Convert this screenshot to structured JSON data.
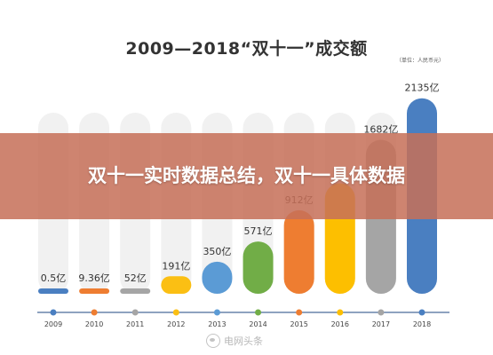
{
  "chart_data": {
    "type": "bar",
    "title": "2009—2018“双十一”成交额",
    "unit_note": "（单位：人民币元）",
    "categories": [
      "2009",
      "2010",
      "2011",
      "2012",
      "2013",
      "2014",
      "2015",
      "2016",
      "2017",
      "2018"
    ],
    "values": [
      0.5,
      9.36,
      52,
      191,
      350,
      571,
      912,
      1207,
      1682,
      2135
    ],
    "value_labels": [
      "0.5亿",
      "9.36亿",
      "52亿",
      "191亿",
      "350亿",
      "571亿",
      "912亿",
      "",
      "1682亿",
      "2135亿"
    ],
    "colors": [
      "#4a7fc1",
      "#ee7d31",
      "#a5a5a5",
      "#fbbf13",
      "#5b9bd5",
      "#71ad47",
      "#ee7d31",
      "#fdbf00",
      "#a5a5a5",
      "#4a7fc1"
    ],
    "ylim": [
      0,
      2200
    ],
    "grid": false,
    "timeline_color": "#4a6a9a"
  },
  "overlay": {
    "headline": "双十一实时数据总结，双十一具体数据"
  },
  "watermark": {
    "text": "电网头条"
  }
}
